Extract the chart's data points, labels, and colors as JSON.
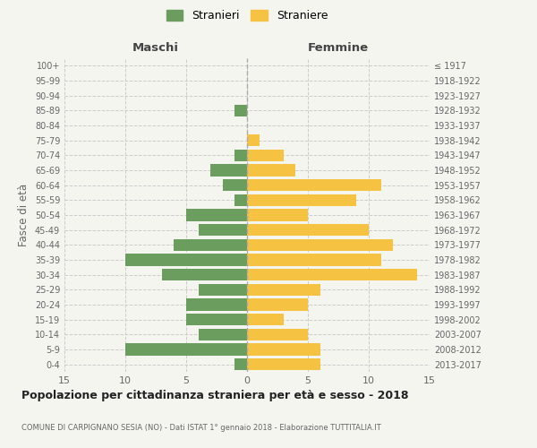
{
  "age_groups": [
    "0-4",
    "5-9",
    "10-14",
    "15-19",
    "20-24",
    "25-29",
    "30-34",
    "35-39",
    "40-44",
    "45-49",
    "50-54",
    "55-59",
    "60-64",
    "65-69",
    "70-74",
    "75-79",
    "80-84",
    "85-89",
    "90-94",
    "95-99",
    "100+"
  ],
  "birth_years": [
    "2013-2017",
    "2008-2012",
    "2003-2007",
    "1998-2002",
    "1993-1997",
    "1988-1992",
    "1983-1987",
    "1978-1982",
    "1973-1977",
    "1968-1972",
    "1963-1967",
    "1958-1962",
    "1953-1957",
    "1948-1952",
    "1943-1947",
    "1938-1942",
    "1933-1937",
    "1928-1932",
    "1923-1927",
    "1918-1922",
    "≤ 1917"
  ],
  "maschi": [
    1,
    10,
    4,
    5,
    5,
    4,
    7,
    10,
    6,
    4,
    5,
    1,
    2,
    3,
    1,
    0,
    0,
    1,
    0,
    0,
    0
  ],
  "femmine": [
    6,
    6,
    5,
    3,
    5,
    6,
    14,
    11,
    12,
    10,
    5,
    9,
    11,
    4,
    3,
    1,
    0,
    0,
    0,
    0,
    0
  ],
  "color_maschi": "#6b9e5e",
  "color_femmine": "#f5c242",
  "xlim": 15,
  "xlabel_left": "Maschi",
  "xlabel_right": "Femmine",
  "ylabel_left": "Fasce di età",
  "legend_maschi": "Stranieri",
  "legend_femmine": "Straniere",
  "title": "Popolazione per cittadinanza straniera per età e sesso - 2018",
  "subtitle": "COMUNE DI CARPIGNANO SESIA (NO) - Dati ISTAT 1° gennaio 2018 - Elaborazione TUTTITALIA.IT",
  "bg_color": "#f5f5f0",
  "grid_color": "#cccccc",
  "bar_height": 0.8,
  "xticks": [
    -15,
    -10,
    -5,
    0,
    5,
    10,
    15
  ],
  "xtick_labels": [
    "15",
    "10",
    "5",
    "0",
    "5",
    "10",
    "15"
  ]
}
